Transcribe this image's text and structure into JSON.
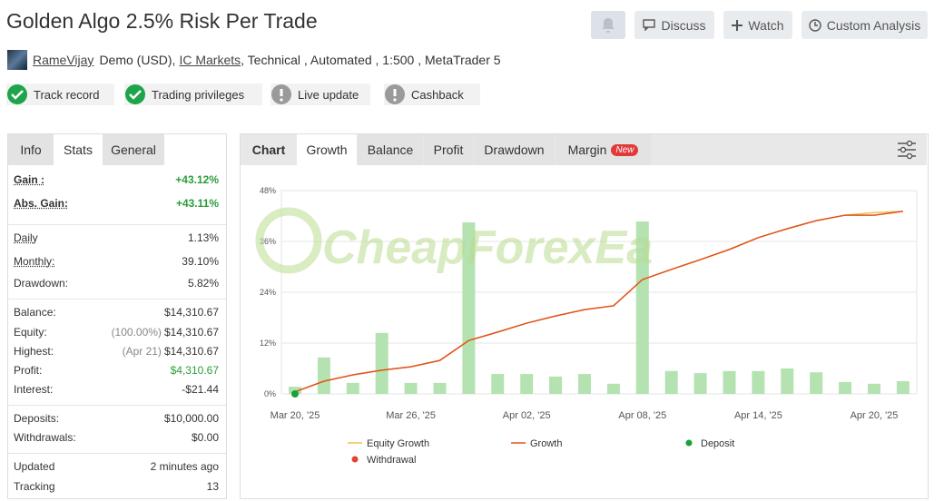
{
  "header": {
    "title": "Golden Algo 2.5% Risk Per Trade",
    "buttons": [
      "Discuss",
      "Watch",
      "Custom Analysis"
    ]
  },
  "account": {
    "user": "RameVijay",
    "details_prefix": "Demo (USD),",
    "broker": "IC Markets",
    "details_suffix": ", Technical , Automated , 1:500 , MetaTrader 5"
  },
  "badges": [
    "Track record",
    "Trading privileges",
    "Live update",
    "Cashback"
  ],
  "stats_panel": {
    "tabs": [
      "Info",
      "Stats",
      "General"
    ],
    "groups": [
      [
        {
          "label": "Gain :",
          "value": "+43.12%"
        },
        {
          "label": "Abs. Gain:",
          "value": "+43.11%"
        }
      ],
      [
        {
          "label": "Daily",
          "value": "1.13%"
        },
        {
          "label": "Monthly:",
          "value": "39.10%"
        },
        {
          "label": "Drawdown:",
          "value": "5.82%"
        }
      ],
      [
        {
          "label": "Balance:",
          "value": "$14,310.67"
        },
        {
          "label": "Equity:",
          "note": "(100.00%)",
          "value": "$14,310.67"
        },
        {
          "label": "Highest:",
          "note": "(Apr 21)",
          "value": "$14,310.67"
        },
        {
          "label": "Profit:",
          "value": "$4,310.67"
        },
        {
          "label": "Interest:",
          "value": "-$21.44"
        }
      ],
      [
        {
          "label": "Deposits:",
          "value": "$10,000.00"
        },
        {
          "label": "Withdrawals:",
          "value": "$0.00"
        }
      ],
      [
        {
          "label": "Updated",
          "value": "2 minutes ago"
        },
        {
          "label": "Tracking",
          "value": "13"
        }
      ]
    ]
  },
  "chart_panel": {
    "tabs": [
      "Chart",
      "Growth",
      "Balance",
      "Profit",
      "Drawdown",
      "Margin"
    ],
    "new_badge": "New",
    "watermark": "CheapForexEa"
  },
  "chart_data": {
    "type": "line",
    "categories": [
      "Mar 20, '25",
      null,
      null,
      null,
      "Mar 26, '25",
      null,
      null,
      null,
      "Apr 02, '25",
      null,
      null,
      null,
      "Apr 08, '25",
      null,
      null,
      null,
      "Apr 14, '25",
      null,
      null,
      null,
      "Apr 20, '25",
      null
    ],
    "ylim": [
      0,
      48
    ],
    "yticks": [
      {
        "value": 0,
        "label": "0%"
      },
      {
        "value": 12,
        "label": "12%"
      },
      {
        "value": 24,
        "label": "24%"
      },
      {
        "value": 36,
        "label": "36%"
      },
      {
        "value": 48,
        "label": "48%"
      }
    ],
    "grid": true,
    "series": [
      {
        "name": "Equity Growth",
        "type": "line",
        "color": "#f2c14e",
        "values": [
          0.5,
          3.0,
          4.5,
          5.6,
          6.4,
          7.9,
          12.6,
          14.6,
          16.7,
          18.4,
          19.9,
          20.8,
          27.0,
          29.4,
          31.7,
          34.1,
          36.9,
          39.0,
          40.9,
          42.2,
          42.8,
          43.1
        ]
      },
      {
        "name": "Growth",
        "type": "line",
        "color": "#e0531f",
        "values": [
          0.5,
          3.0,
          4.5,
          5.6,
          6.4,
          7.9,
          12.6,
          14.6,
          16.7,
          18.4,
          19.9,
          20.8,
          27.0,
          29.4,
          31.7,
          34.1,
          36.9,
          39.0,
          40.9,
          42.2,
          42.2,
          43.1
        ]
      },
      {
        "name": "Deposit",
        "type": "scatter",
        "color": "#17a13a",
        "values": [
          0,
          null,
          null,
          null,
          null,
          null,
          null,
          null,
          null,
          null,
          null,
          null,
          null,
          null,
          null,
          null,
          null,
          null,
          null,
          null,
          null,
          null
        ]
      },
      {
        "name": "Withdrawal",
        "type": "scatter",
        "color": "#e2452f",
        "values": [
          null,
          null,
          null,
          null,
          null,
          null,
          null,
          null,
          null,
          null,
          null,
          null,
          null,
          null,
          null,
          null,
          null,
          null,
          null,
          null,
          null,
          null
        ]
      },
      {
        "type": "bar",
        "color": "#b5e2b1",
        "values": [
          1.7,
          8.6,
          2.6,
          14.4,
          2.6,
          2.6,
          40.5,
          4.7,
          4.7,
          4.1,
          4.7,
          2.4,
          40.7,
          5.4,
          4.9,
          5.4,
          5.4,
          6.0,
          5.1,
          2.8,
          2.4,
          3.0
        ]
      }
    ]
  }
}
